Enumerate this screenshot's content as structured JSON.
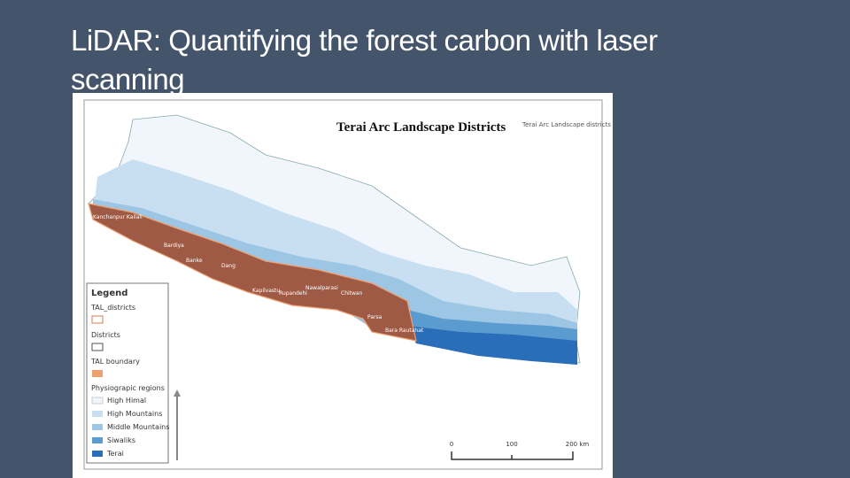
{
  "slide": {
    "title": "LiDAR: Quantifying the forest carbon with laser scanning"
  },
  "map": {
    "caption": "Terai Arc Landscape Districts",
    "inset_title": "Terai Arc Landscape districts",
    "district_labels": [
      "Kanchanpur Kailali",
      "Bardiya",
      "Banke",
      "Dang",
      "Kapilvastu",
      "Rupandehi",
      "Nawalparasi",
      "Chitwan",
      "Parsa",
      "Bara Rautahat"
    ],
    "legend": {
      "title": "Legend",
      "items": [
        "TAL_districts",
        "Districts",
        "TAL boundary",
        "Physiograpic regions",
        "High Himal",
        "High Mountains",
        "Middle Mountains",
        "Siwaliks",
        "Terai"
      ]
    },
    "scale": [
      "0",
      "100",
      "200 km"
    ]
  }
}
